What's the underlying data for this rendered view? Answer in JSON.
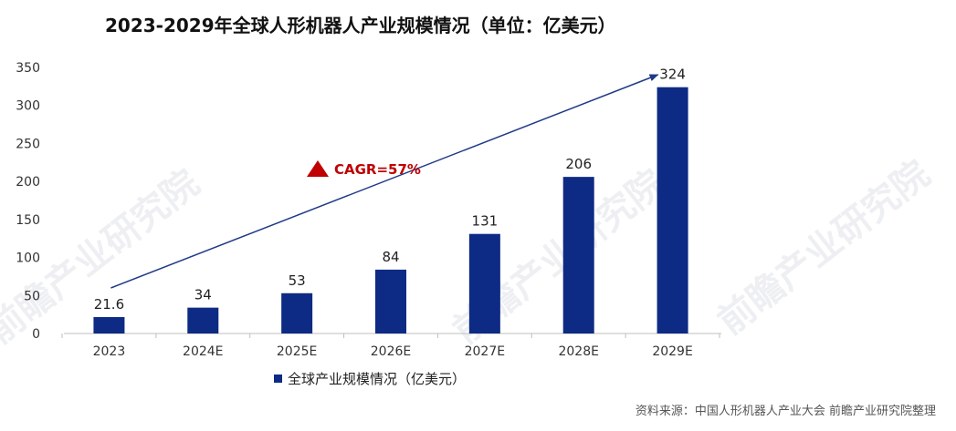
{
  "page": {
    "source": "资料来源：中国人形机器人产业大会 前瞻产业研究院整理",
    "cagr_label": "CAGR=57%",
    "watermark": "前瞻产业研究院"
  },
  "colors": {
    "bar": "#0d2a84",
    "arrow": "#1f3a86",
    "cagr_marker": "#c00000",
    "grid_text": "#333333"
  },
  "chart_data": {
    "type": "bar",
    "title": "2023-2029年全球人形机器人产业规模情况（单位：亿美元）",
    "categories": [
      "2023",
      "2024E",
      "2025E",
      "2026E",
      "2027E",
      "2028E",
      "2029E"
    ],
    "series": [
      {
        "name": "全球产业规模情况（亿美元）",
        "values": [
          21.6,
          34,
          53,
          84,
          131,
          206,
          324
        ],
        "data_labels": [
          "21.6",
          "34",
          "53",
          "84",
          "131",
          "206",
          "324"
        ]
      }
    ],
    "ylim": [
      0,
      350
    ],
    "yticks": [
      0,
      50,
      100,
      150,
      200,
      250,
      300,
      350
    ],
    "grid": false,
    "legend": "bottom"
  }
}
